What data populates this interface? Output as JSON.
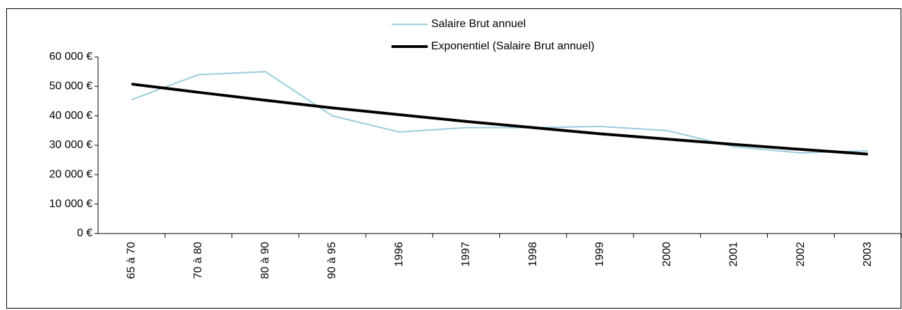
{
  "chart_data": {
    "type": "line",
    "categories": [
      "65 à 70",
      "70 à 80",
      "80 à 90",
      "90 à 95",
      "1996",
      "1997",
      "1998",
      "1999",
      "2000",
      "2001",
      "2002",
      "2003"
    ],
    "series": [
      {
        "name": "Salaire Brut annuel",
        "color": "#99ccdd",
        "width": 2,
        "values": [
          45500,
          54000,
          55000,
          40000,
          34500,
          36000,
          36000,
          36400,
          35000,
          29500,
          27400,
          28100
        ]
      },
      {
        "name": "Exponentiel (Salaire Brut annuel)",
        "color": "#000000",
        "width": 4,
        "values": [
          50800,
          48000,
          45300,
          42700,
          40400,
          38100,
          36000,
          33900,
          32100,
          30300,
          28600,
          27000
        ]
      }
    ],
    "ylim": [
      0,
      60000
    ],
    "yticks": [
      {
        "value": 0,
        "label": "0 €"
      },
      {
        "value": 10000,
        "label": "10 000 €"
      },
      {
        "value": 20000,
        "label": "20 000 €"
      },
      {
        "value": 30000,
        "label": "30 000 €"
      },
      {
        "value": 40000,
        "label": "40 000 €"
      },
      {
        "value": 50000,
        "label": "50 000 €"
      },
      {
        "value": 60000,
        "label": "60 000 €"
      }
    ],
    "grid": false,
    "legend": "top"
  }
}
